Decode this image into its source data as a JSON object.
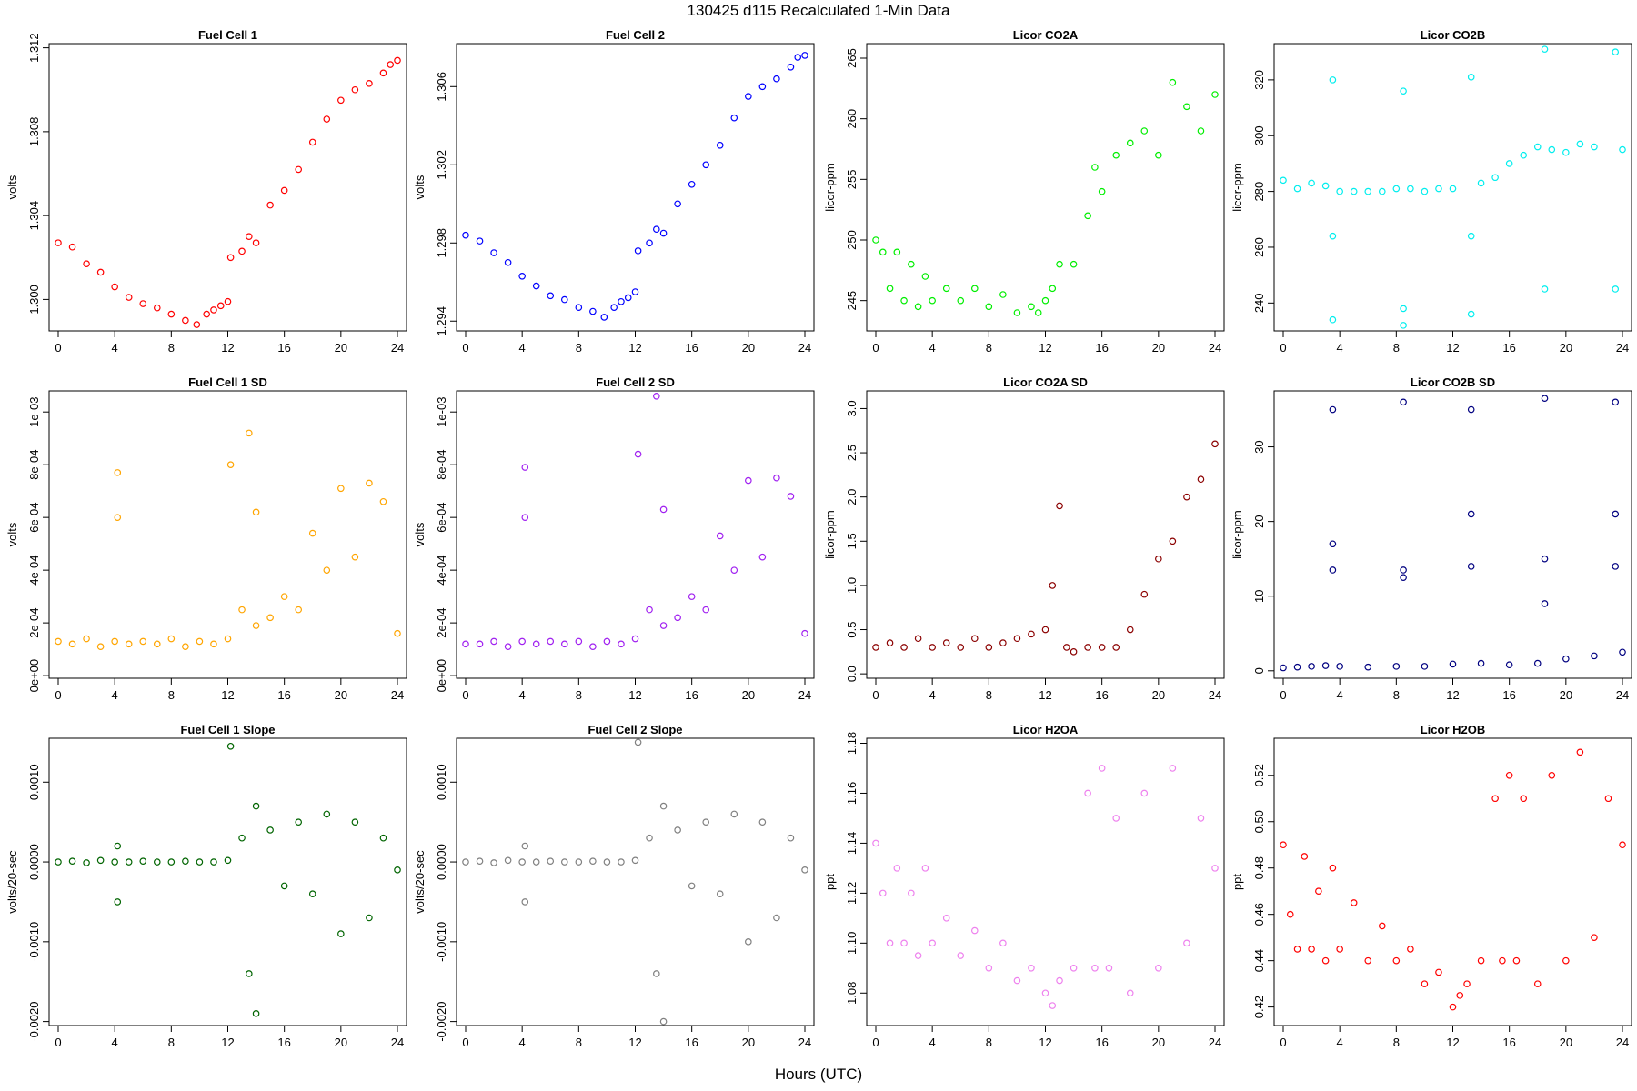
{
  "figure": {
    "title": "130425   d115   Recalculated 1-Min Data",
    "xlabel": "Hours (UTC)"
  },
  "chart_data": [
    {
      "type": "scatter",
      "title": "Fuel Cell 1",
      "ylabel": "volts",
      "color": "#ff0000",
      "xlim": [
        0,
        24
      ],
      "ylim": [
        1.2985,
        1.3122
      ],
      "xticks": [
        "0",
        "4",
        "8",
        "12",
        "16",
        "20",
        "24"
      ],
      "yticks": [
        1.3,
        1.304,
        1.308,
        1.312
      ],
      "ytick_labels": [
        "1.300",
        "1.304",
        "1.308",
        "1.312"
      ],
      "x": [
        0,
        1,
        2,
        3,
        4,
        5,
        6,
        7,
        8,
        9,
        9.8,
        10.5,
        11,
        11.5,
        12,
        12.2,
        13,
        13.5,
        14,
        15,
        16,
        17,
        18,
        19,
        20,
        21,
        22,
        23,
        23.5,
        24
      ],
      "y": [
        1.3027,
        1.3025,
        1.3017,
        1.3013,
        1.3006,
        1.3001,
        1.2998,
        1.2996,
        1.2993,
        1.299,
        1.2988,
        1.2993,
        1.2995,
        1.2997,
        1.2999,
        1.302,
        1.3023,
        1.303,
        1.3027,
        1.3045,
        1.3052,
        1.3062,
        1.3075,
        1.3086,
        1.3095,
        1.31,
        1.3103,
        1.3108,
        1.3112,
        1.3114
      ]
    },
    {
      "type": "scatter",
      "title": "Fuel Cell 2",
      "ylabel": "volts",
      "color": "#0000ff",
      "xlim": [
        0,
        24
      ],
      "ylim": [
        1.2935,
        1.3082
      ],
      "xticks": [
        "0",
        "4",
        "8",
        "12",
        "16",
        "20",
        "24"
      ],
      "yticks": [
        1.294,
        1.298,
        1.302,
        1.306
      ],
      "ytick_labels": [
        "1.294",
        "1.298",
        "1.302",
        "1.306"
      ],
      "x": [
        0,
        1,
        2,
        3,
        4,
        5,
        6,
        7,
        8,
        9,
        9.8,
        10.5,
        11,
        11.5,
        12,
        12.2,
        13,
        13.5,
        14,
        15,
        16,
        17,
        18,
        19,
        20,
        21,
        22,
        23,
        23.5,
        24
      ],
      "y": [
        1.2984,
        1.2981,
        1.2975,
        1.297,
        1.2963,
        1.2958,
        1.2953,
        1.2951,
        1.2947,
        1.2945,
        1.2942,
        1.2947,
        1.295,
        1.2952,
        1.2955,
        1.2976,
        1.298,
        1.2987,
        1.2985,
        1.3,
        1.301,
        1.302,
        1.303,
        1.3044,
        1.3055,
        1.306,
        1.3064,
        1.307,
        1.3075,
        1.3076
      ]
    },
    {
      "type": "scatter",
      "title": "Licor CO2A",
      "ylabel": "licor-ppm",
      "color": "#00ee00",
      "xlim": [
        0,
        24
      ],
      "ylim": [
        242.5,
        266.2
      ],
      "xticks": [
        "0",
        "4",
        "8",
        "12",
        "16",
        "20",
        "24"
      ],
      "yticks": [
        245,
        250,
        255,
        260,
        265
      ],
      "ytick_labels": [
        "245",
        "250",
        "255",
        "260",
        "265"
      ],
      "x": [
        0,
        0.5,
        1,
        1.5,
        2,
        2.5,
        3,
        3.5,
        4,
        5,
        6,
        7,
        8,
        9,
        10,
        11,
        11.5,
        12,
        12.5,
        13,
        14,
        15,
        15.5,
        16,
        17,
        18,
        19,
        20,
        21,
        22,
        23,
        24
      ],
      "y": [
        250,
        249,
        246,
        249,
        245,
        248,
        244.5,
        247,
        245,
        246,
        245,
        246,
        244.5,
        245.5,
        244,
        244.5,
        244,
        245,
        246,
        248,
        248,
        252,
        256,
        254,
        257,
        258,
        259,
        257,
        263,
        261,
        259,
        262
      ]
    },
    {
      "type": "scatter",
      "title": "Licor CO2B",
      "ylabel": "licor-ppm",
      "color": "#00eeee",
      "xlim": [
        0,
        24
      ],
      "ylim": [
        230,
        333
      ],
      "xticks": [
        "0",
        "4",
        "8",
        "12",
        "16",
        "20",
        "24"
      ],
      "yticks": [
        240,
        260,
        280,
        300,
        320
      ],
      "ytick_labels": [
        "240",
        "260",
        "280",
        "300",
        "320"
      ],
      "x": [
        0,
        1,
        2,
        3,
        3.5,
        3.5,
        3.5,
        4,
        5,
        6,
        7,
        8,
        8.5,
        8.5,
        8.5,
        9,
        10,
        11,
        12,
        13.3,
        13.3,
        13.3,
        14,
        15,
        16,
        17,
        18,
        18.5,
        18.5,
        19,
        20,
        21,
        22,
        23.5,
        23.5,
        24
      ],
      "y": [
        284,
        281,
        283,
        282,
        320,
        234,
        264,
        280,
        280,
        280,
        280,
        281,
        316,
        232,
        238,
        281,
        280,
        281,
        281,
        321,
        236,
        264,
        283,
        285,
        290,
        293,
        296,
        331,
        245,
        295,
        294,
        297,
        296,
        330,
        245,
        295
      ]
    },
    {
      "type": "scatter",
      "title": "Fuel Cell 1 SD",
      "ylabel": "volts",
      "color": "#ffa500",
      "xlim": [
        0,
        24
      ],
      "ylim": [
        -1e-05,
        0.00108
      ],
      "xticks": [
        "0",
        "4",
        "8",
        "12",
        "16",
        "20",
        "24"
      ],
      "yticks": [
        0,
        0.0002,
        0.0004,
        0.0006,
        0.0008,
        0.001
      ],
      "ytick_labels": [
        "0e+00",
        "2e-04",
        "4e-04",
        "6e-04",
        "8e-04",
        "1e-03"
      ],
      "x": [
        0,
        1,
        2,
        3,
        4,
        4.2,
        4.2,
        5,
        6,
        7,
        8,
        9,
        10,
        11,
        12,
        12.2,
        13,
        13.5,
        14,
        14,
        15,
        16,
        17,
        18,
        19,
        20,
        21,
        22,
        23,
        24
      ],
      "y": [
        0.00013,
        0.00012,
        0.00014,
        0.00011,
        0.00013,
        0.00077,
        0.0006,
        0.00012,
        0.00013,
        0.00012,
        0.00014,
        0.00011,
        0.00013,
        0.00012,
        0.00014,
        0.0008,
        0.00025,
        0.00092,
        0.00062,
        0.00019,
        0.00022,
        0.0003,
        0.00025,
        0.00054,
        0.0004,
        0.00071,
        0.00045,
        0.00073,
        0.00066,
        0.00016
      ]
    },
    {
      "type": "scatter",
      "title": "Fuel Cell 2 SD",
      "ylabel": "volts",
      "color": "#a020f0",
      "xlim": [
        0,
        24
      ],
      "ylim": [
        -1e-05,
        0.00108
      ],
      "xticks": [
        "0",
        "4",
        "8",
        "12",
        "16",
        "20",
        "24"
      ],
      "yticks": [
        0,
        0.0002,
        0.0004,
        0.0006,
        0.0008,
        0.001
      ],
      "ytick_labels": [
        "0e+00",
        "2e-04",
        "4e-04",
        "6e-04",
        "8e-04",
        "1e-03"
      ],
      "x": [
        0,
        1,
        2,
        3,
        4,
        4.2,
        4.2,
        5,
        6,
        7,
        8,
        9,
        10,
        11,
        12,
        12.2,
        13,
        13.5,
        14,
        14,
        15,
        16,
        17,
        18,
        19,
        20,
        21,
        22,
        23,
        24
      ],
      "y": [
        0.00012,
        0.00012,
        0.00013,
        0.00011,
        0.00013,
        0.00079,
        0.0006,
        0.00012,
        0.00013,
        0.00012,
        0.00013,
        0.00011,
        0.00013,
        0.00012,
        0.00014,
        0.00084,
        0.00025,
        0.00106,
        0.00063,
        0.00019,
        0.00022,
        0.0003,
        0.00025,
        0.00053,
        0.0004,
        0.00074,
        0.00045,
        0.00075,
        0.00068,
        0.00016
      ]
    },
    {
      "type": "scatter",
      "title": "Licor CO2A SD",
      "ylabel": "licor-ppm",
      "color": "#8b0000",
      "xlim": [
        0,
        24
      ],
      "ylim": [
        -0.05,
        3.2
      ],
      "xticks": [
        "0",
        "4",
        "8",
        "12",
        "16",
        "20",
        "24"
      ],
      "yticks": [
        0,
        0.5,
        1.0,
        1.5,
        2.0,
        2.5,
        3.0
      ],
      "ytick_labels": [
        "0.0",
        "0.5",
        "1.0",
        "1.5",
        "2.0",
        "2.5",
        "3.0"
      ],
      "x": [
        0,
        1,
        2,
        3,
        4,
        5,
        6,
        7,
        8,
        9,
        10,
        11,
        12,
        12.5,
        13,
        13.5,
        14,
        15,
        16,
        17,
        18,
        19,
        20,
        21,
        22,
        23,
        24
      ],
      "y": [
        0.3,
        0.35,
        0.3,
        0.4,
        0.3,
        0.35,
        0.3,
        0.4,
        0.3,
        0.35,
        0.4,
        0.45,
        0.5,
        1.0,
        1.9,
        0.3,
        0.25,
        0.3,
        0.3,
        0.3,
        0.5,
        0.9,
        1.3,
        1.5,
        2.0,
        2.2,
        2.6
      ]
    },
    {
      "type": "scatter",
      "title": "Licor CO2B SD",
      "ylabel": "licor-ppm",
      "color": "#000080",
      "xlim": [
        0,
        24
      ],
      "ylim": [
        -1,
        37.5
      ],
      "xticks": [
        "0",
        "4",
        "8",
        "12",
        "16",
        "20",
        "24"
      ],
      "yticks": [
        0,
        10,
        20,
        30
      ],
      "ytick_labels": [
        "0",
        "10",
        "20",
        "30"
      ],
      "x": [
        0,
        1,
        2,
        3,
        3.5,
        3.5,
        3.5,
        4,
        6,
        8,
        8.5,
        8.5,
        8.5,
        10,
        12,
        13.3,
        13.3,
        13.3,
        14,
        16,
        18,
        18.5,
        18.5,
        18.5,
        20,
        22,
        23.5,
        23.5,
        23.5,
        24
      ],
      "y": [
        0.4,
        0.5,
        0.6,
        0.7,
        35,
        17,
        13.5,
        0.6,
        0.5,
        0.6,
        36,
        13.5,
        12.5,
        0.6,
        0.9,
        35,
        21,
        14,
        1.0,
        0.8,
        1.0,
        36.5,
        15,
        9,
        1.6,
        2.0,
        36,
        21,
        14,
        2.5
      ]
    },
    {
      "type": "scatter",
      "title": "Fuel Cell 1 Slope",
      "ylabel": "volts/20-sec",
      "color": "#006400",
      "xlim": [
        0,
        24
      ],
      "ylim": [
        -0.00205,
        0.00155
      ],
      "xticks": [
        "0",
        "4",
        "8",
        "12",
        "16",
        "20",
        "24"
      ],
      "yticks": [
        -0.002,
        -0.001,
        0,
        0.001
      ],
      "ytick_labels": [
        "-0.0020",
        "-0.0010",
        "0.0000",
        "0.0010"
      ],
      "x": [
        0,
        1,
        2,
        3,
        4,
        4.2,
        4.2,
        5,
        6,
        7,
        8,
        9,
        10,
        11,
        12,
        12.2,
        13,
        13.5,
        14,
        14,
        15,
        16,
        17,
        18,
        19,
        20,
        21,
        22,
        23,
        24
      ],
      "y": [
        0,
        1e-05,
        -1e-05,
        2e-05,
        0,
        0.0002,
        -0.0005,
        0,
        1e-05,
        0,
        0,
        1e-05,
        0,
        0,
        2e-05,
        0.00145,
        0.0003,
        -0.0014,
        -0.0019,
        0.0007,
        0.0004,
        -0.0003,
        0.0005,
        -0.0004,
        0.0006,
        -0.0009,
        0.0005,
        -0.0007,
        0.0003,
        -0.0001
      ]
    },
    {
      "type": "scatter",
      "title": "Fuel Cell 2 Slope",
      "ylabel": "volts/20-sec",
      "color": "#808080",
      "xlim": [
        0,
        24
      ],
      "ylim": [
        -0.00205,
        0.00155
      ],
      "xticks": [
        "0",
        "4",
        "8",
        "12",
        "16",
        "20",
        "24"
      ],
      "yticks": [
        -0.002,
        -0.001,
        0,
        0.001
      ],
      "ytick_labels": [
        "-0.0020",
        "-0.0010",
        "0.0000",
        "0.0010"
      ],
      "x": [
        0,
        1,
        2,
        3,
        4,
        4.2,
        4.2,
        5,
        6,
        7,
        8,
        9,
        10,
        11,
        12,
        12.2,
        13,
        13.5,
        14,
        14,
        15,
        16,
        17,
        18,
        19,
        20,
        21,
        22,
        23,
        24
      ],
      "y": [
        0,
        1e-05,
        -1e-05,
        2e-05,
        0,
        0.0002,
        -0.0005,
        0,
        1e-05,
        0,
        0,
        1e-05,
        0,
        0,
        2e-05,
        0.0015,
        0.0003,
        -0.0014,
        -0.002,
        0.0007,
        0.0004,
        -0.0003,
        0.0005,
        -0.0004,
        0.0006,
        -0.001,
        0.0005,
        -0.0007,
        0.0003,
        -0.0001
      ]
    },
    {
      "type": "scatter",
      "title": "Licor H2OA",
      "ylabel": "ppt",
      "color": "#ee82ee",
      "xlim": [
        0,
        24
      ],
      "ylim": [
        1.067,
        1.182
      ],
      "xticks": [
        "0",
        "4",
        "8",
        "12",
        "16",
        "20",
        "24"
      ],
      "yticks": [
        1.08,
        1.1,
        1.12,
        1.14,
        1.16,
        1.18
      ],
      "ytick_labels": [
        "1.08",
        "1.10",
        "1.12",
        "1.14",
        "1.16",
        "1.18"
      ],
      "x": [
        0,
        0.5,
        1,
        1.5,
        2,
        2.5,
        3,
        3.5,
        4,
        5,
        6,
        7,
        8,
        9,
        10,
        11,
        12,
        12.5,
        13,
        14,
        15,
        15.5,
        16,
        16.5,
        17,
        18,
        19,
        20,
        21,
        22,
        23,
        24
      ],
      "y": [
        1.14,
        1.12,
        1.1,
        1.13,
        1.1,
        1.12,
        1.095,
        1.13,
        1.1,
        1.11,
        1.095,
        1.105,
        1.09,
        1.1,
        1.085,
        1.09,
        1.08,
        1.075,
        1.085,
        1.09,
        1.16,
        1.09,
        1.17,
        1.09,
        1.15,
        1.08,
        1.16,
        1.09,
        1.17,
        1.1,
        1.15,
        1.13
      ]
    },
    {
      "type": "scatter",
      "title": "Licor H2OB",
      "ylabel": "ppt",
      "color": "#ff0000",
      "xlim": [
        0,
        24
      ],
      "ylim": [
        0.412,
        0.536
      ],
      "xticks": [
        "0",
        "4",
        "8",
        "12",
        "16",
        "20",
        "24"
      ],
      "yticks": [
        0.42,
        0.44,
        0.46,
        0.48,
        0.5,
        0.52
      ],
      "ytick_labels": [
        "0.42",
        "0.44",
        "0.46",
        "0.48",
        "0.50",
        "0.52"
      ],
      "x": [
        0,
        0.5,
        1,
        1.5,
        2,
        2.5,
        3,
        3.5,
        4,
        5,
        6,
        7,
        8,
        9,
        10,
        11,
        12,
        12.5,
        13,
        14,
        15,
        15.5,
        16,
        16.5,
        17,
        18,
        19,
        20,
        21,
        22,
        23,
        24
      ],
      "y": [
        0.49,
        0.46,
        0.445,
        0.485,
        0.445,
        0.47,
        0.44,
        0.48,
        0.445,
        0.465,
        0.44,
        0.455,
        0.44,
        0.445,
        0.43,
        0.435,
        0.42,
        0.425,
        0.43,
        0.44,
        0.51,
        0.44,
        0.52,
        0.44,
        0.51,
        0.43,
        0.52,
        0.44,
        0.53,
        0.45,
        0.51,
        0.49
      ]
    }
  ]
}
